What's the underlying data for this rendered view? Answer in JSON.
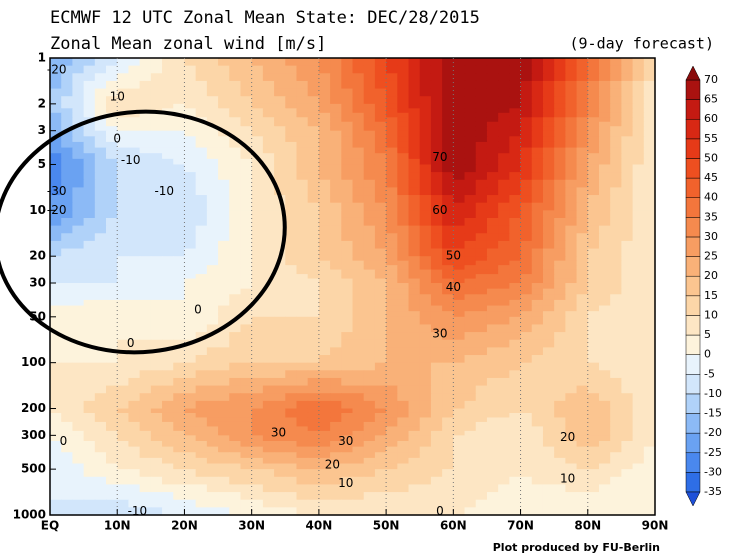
{
  "chart_data": {
    "type": "contour",
    "title": "ECMWF 12 UTC Zonal Mean State: DEC/28/2015",
    "subtitle": "Zonal Mean zonal wind [m/s]",
    "note": "(9-day forecast)",
    "credit": "Plot produced by FU-Berlin",
    "log_y": true,
    "xlim": [
      0,
      90
    ],
    "ylim": [
      1000,
      1
    ],
    "xticks": [
      {
        "value": 0,
        "label": "EQ"
      },
      {
        "value": 10,
        "label": "10N"
      },
      {
        "value": 20,
        "label": "20N"
      },
      {
        "value": 30,
        "label": "30N"
      },
      {
        "value": 40,
        "label": "40N"
      },
      {
        "value": 50,
        "label": "50N"
      },
      {
        "value": 60,
        "label": "60N"
      },
      {
        "value": 70,
        "label": "70N"
      },
      {
        "value": 80,
        "label": "80N"
      },
      {
        "value": 90,
        "label": "90N"
      }
    ],
    "yticks": [
      1,
      2,
      3,
      5,
      10,
      20,
      30,
      50,
      100,
      200,
      300,
      500,
      1000
    ],
    "x": [
      0,
      10,
      20,
      30,
      40,
      50,
      60,
      70,
      80,
      90
    ],
    "y": [
      1,
      2,
      3,
      5,
      10,
      20,
      30,
      50,
      100,
      200,
      300,
      500,
      1000
    ],
    "z": [
      [
        -20,
        -5,
        10,
        20,
        30,
        50,
        70,
        70,
        40,
        10
      ],
      [
        -15,
        10,
        5,
        15,
        25,
        45,
        70,
        65,
        35,
        5
      ],
      [
        -20,
        0,
        0,
        10,
        20,
        40,
        70,
        60,
        30,
        5
      ],
      [
        -30,
        -10,
        -5,
        5,
        20,
        35,
        70,
        55,
        25,
        5
      ],
      [
        -25,
        -10,
        -10,
        5,
        15,
        30,
        60,
        45,
        20,
        5
      ],
      [
        -10,
        -5,
        -5,
        5,
        15,
        25,
        50,
        40,
        15,
        5
      ],
      [
        -5,
        -5,
        0,
        5,
        10,
        20,
        40,
        35,
        15,
        5
      ],
      [
        2,
        5,
        0,
        10,
        10,
        20,
        30,
        25,
        10,
        5
      ],
      [
        5,
        5,
        10,
        15,
        15,
        20,
        20,
        15,
        10,
        5
      ],
      [
        5,
        15,
        25,
        30,
        40,
        30,
        15,
        10,
        20,
        5
      ],
      [
        0,
        10,
        20,
        30,
        35,
        25,
        10,
        5,
        20,
        5
      ],
      [
        -5,
        5,
        10,
        15,
        20,
        15,
        10,
        5,
        10,
        2
      ],
      [
        -5,
        -10,
        -5,
        0,
        5,
        5,
        5,
        2,
        0,
        0
      ]
    ],
    "colorbar": {
      "levels": [
        -35,
        -30,
        -25,
        -20,
        -15,
        -10,
        -5,
        0,
        5,
        10,
        15,
        20,
        25,
        30,
        35,
        40,
        45,
        50,
        55,
        60,
        65,
        70
      ],
      "colors": [
        "#1e50d8",
        "#2e6ee6",
        "#4a88ee",
        "#6aa2f2",
        "#8cbaf6",
        "#b0d2f9",
        "#d2e6fb",
        "#e8f3fc",
        "#fdf3dc",
        "#fde6c4",
        "#fcd6a8",
        "#fbc590",
        "#f9b178",
        "#f79d62",
        "#f58a4e",
        "#f3763c",
        "#f1622c",
        "#ee4f20",
        "#e63a18",
        "#d82814",
        "#c41a12",
        "#aa1210",
        "#8a0c0c"
      ]
    },
    "contour_labels": [
      {
        "x": 1,
        "y": 1.2,
        "value": -20
      },
      {
        "x": 10,
        "y": 1.8,
        "value": 10
      },
      {
        "x": 10,
        "y": 3.4,
        "value": 0
      },
      {
        "x": 12,
        "y": 4.7,
        "value": -10
      },
      {
        "x": 1,
        "y": 7.5,
        "value": -30
      },
      {
        "x": 17,
        "y": 7.5,
        "value": -10
      },
      {
        "x": 1,
        "y": 10,
        "value": -20
      },
      {
        "x": 58,
        "y": 4.5,
        "value": 70
      },
      {
        "x": 58,
        "y": 10,
        "value": 60
      },
      {
        "x": 60,
        "y": 20,
        "value": 50
      },
      {
        "x": 60,
        "y": 32,
        "value": 40
      },
      {
        "x": 58,
        "y": 65,
        "value": 30
      },
      {
        "x": 22,
        "y": 45,
        "value": 0
      },
      {
        "x": 12,
        "y": 75,
        "value": 0
      },
      {
        "x": 34,
        "y": 290,
        "value": 30
      },
      {
        "x": 44,
        "y": 330,
        "value": 30
      },
      {
        "x": 42,
        "y": 470,
        "value": 20
      },
      {
        "x": 44,
        "y": 620,
        "value": 10
      },
      {
        "x": 77,
        "y": 310,
        "value": 20
      },
      {
        "x": 77,
        "y": 580,
        "value": 10
      },
      {
        "x": 2,
        "y": 330,
        "value": 0
      },
      {
        "x": 13,
        "y": 950,
        "value": -10
      },
      {
        "x": 58,
        "y": 950,
        "value": 0
      }
    ]
  }
}
